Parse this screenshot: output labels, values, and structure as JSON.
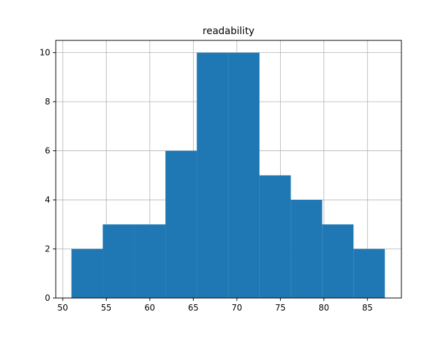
{
  "chart_data": {
    "type": "bar",
    "title": "readability",
    "xlabel": "",
    "ylabel": "",
    "grid": true,
    "xlim": [
      49.2,
      88.9
    ],
    "ylim": [
      0,
      10.5
    ],
    "xticks": [
      50,
      55,
      60,
      65,
      70,
      75,
      80,
      85
    ],
    "yticks": [
      0,
      2,
      4,
      6,
      8,
      10
    ],
    "bins": [
      {
        "x0": 51.0,
        "x1": 54.6,
        "value": 2
      },
      {
        "x0": 54.6,
        "x1": 58.2,
        "value": 3
      },
      {
        "x0": 58.2,
        "x1": 61.8,
        "value": 3
      },
      {
        "x0": 61.8,
        "x1": 65.4,
        "value": 6
      },
      {
        "x0": 65.4,
        "x1": 69.0,
        "value": 10
      },
      {
        "x0": 69.0,
        "x1": 72.6,
        "value": 10
      },
      {
        "x0": 72.6,
        "x1": 76.2,
        "value": 5
      },
      {
        "x0": 76.2,
        "x1": 79.8,
        "value": 4
      },
      {
        "x0": 79.8,
        "x1": 83.4,
        "value": 3
      },
      {
        "x0": 83.4,
        "x1": 87.0,
        "value": 2
      }
    ],
    "colors": {
      "bar": "#1f77b4",
      "grid": "#b0b0b0",
      "axes": "#000000"
    }
  }
}
